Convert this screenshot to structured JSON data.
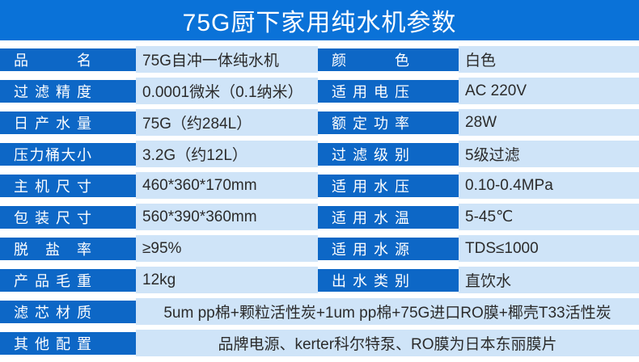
{
  "header": {
    "title": "75G厨下家用纯水机参数"
  },
  "colors": {
    "header_bg": "#0a72d8",
    "label_bg": "#0d67c6",
    "value_bg": "#cfe4f8",
    "value_text": "#2b2b2b",
    "label_text": "#ffffff"
  },
  "table": {
    "rows": [
      {
        "label1": "品名",
        "value1": "75G自冲一体纯水机",
        "label2": "颜色",
        "value2": "白色"
      },
      {
        "label1": "过滤精度",
        "value1": "0.0001微米（0.1纳米）",
        "label2": "适用电压",
        "value2": "AC 220V"
      },
      {
        "label1": "日产水量",
        "value1": "75G（约284L）",
        "label2": "额定功率",
        "value2": "28W"
      },
      {
        "label1": "压力桶大小",
        "value1": "3.2G（约12L）",
        "label2": "过滤级别",
        "value2": "5级过滤"
      },
      {
        "label1": "主机尺寸",
        "value1": "460*360*170mm",
        "label2": "适用水压",
        "value2": "0.10-0.4MPa"
      },
      {
        "label1": "包装尺寸",
        "value1": "560*390*360mm",
        "label2": "适用水温",
        "value2": "5-45℃"
      },
      {
        "label1": "脱盐率",
        "value1": "≥95%",
        "label2": "适用水源",
        "value2": "TDS≤1000"
      },
      {
        "label1": "产品毛重",
        "value1": "12kg",
        "label2": "出水类别",
        "value2": "直饮水"
      }
    ],
    "full_rows": [
      {
        "label": "滤芯材质",
        "value": "5um pp棉+颗粒活性炭+1um pp棉+75G进口RO膜+椰壳T33活性炭"
      },
      {
        "label": "其他配置",
        "value": "品牌电源、kerter科尔特泵、RO膜为日本东丽膜片"
      }
    ]
  }
}
